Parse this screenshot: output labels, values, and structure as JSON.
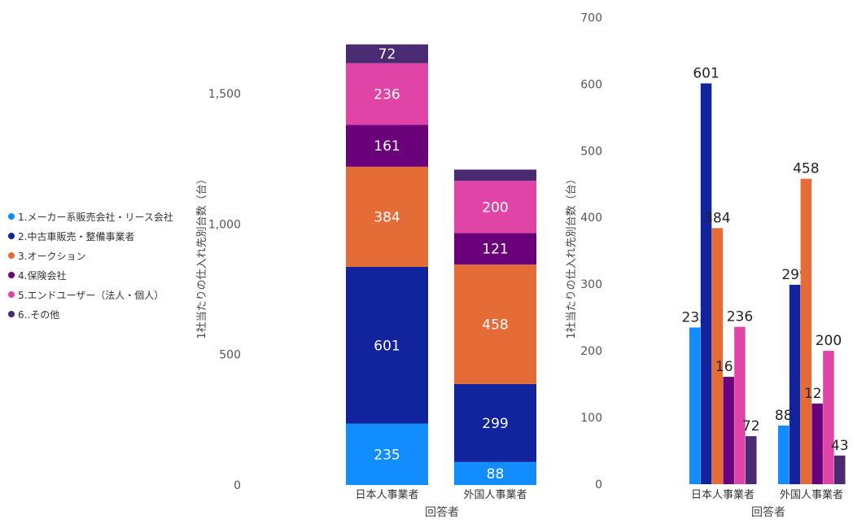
{
  "legend": {
    "items": [
      {
        "label": "1.メーカー系販売会社・リース会社",
        "color": "#118DFF"
      },
      {
        "label": "2.中古車販売・整備事業者",
        "color": "#12239E"
      },
      {
        "label": "3.オークション",
        "color": "#E66C37"
      },
      {
        "label": "4.保険会社",
        "color": "#6B007B"
      },
      {
        "label": "5.エンドユーザー（法人・個人）",
        "color": "#E044A7"
      },
      {
        "label": "6..その他",
        "color": "#4A2A73"
      }
    ]
  },
  "chart_data": [
    {
      "type": "bar",
      "stacked": true,
      "xlabel": "回答者",
      "ylabel": "1社当たりの仕入れ先別台数（台）",
      "ylim": [
        0,
        1700
      ],
      "ytick_labels": [
        "0",
        "500",
        "1,000",
        "1,500"
      ],
      "categories": [
        "日本人事業者",
        "外国人事業者"
      ],
      "series": [
        {
          "name": "1.メーカー系販売会社・リース会社",
          "values": [
            235,
            88
          ],
          "color": "#118DFF"
        },
        {
          "name": "2.中古車販売・整備事業者",
          "values": [
            601,
            299
          ],
          "color": "#12239E"
        },
        {
          "name": "3.オークション",
          "values": [
            384,
            458
          ],
          "color": "#E66C37"
        },
        {
          "name": "4.保険会社",
          "values": [
            161,
            121
          ],
          "color": "#6B007B"
        },
        {
          "name": "5.エンドユーザー（法人・個人）",
          "values": [
            236,
            200
          ],
          "color": "#E044A7"
        },
        {
          "name": "6..その他",
          "values": [
            72,
            43
          ],
          "color": "#4A2A73"
        }
      ],
      "data_labels": [
        [
          "235",
          "88"
        ],
        [
          "601",
          "299"
        ],
        [
          "384",
          "458"
        ],
        [
          "161",
          "121"
        ],
        [
          "236",
          "200"
        ],
        [
          "72",
          ""
        ]
      ]
    },
    {
      "type": "bar",
      "stacked": false,
      "xlabel": "回答者",
      "ylabel": "1社当たりの仕入れ先別台数（台）",
      "ylim": [
        0,
        700
      ],
      "ytick_labels": [
        "0",
        "100",
        "200",
        "300",
        "400",
        "500",
        "600",
        "700"
      ],
      "categories": [
        "日本人事業者",
        "外国人事業者"
      ],
      "series": [
        {
          "name": "1.メーカー系販売会社・リース会社",
          "values": [
            235,
            88
          ],
          "color": "#118DFF"
        },
        {
          "name": "2.中古車販売・整備事業者",
          "values": [
            601,
            299
          ],
          "color": "#12239E"
        },
        {
          "name": "3.オークション",
          "values": [
            384,
            458
          ],
          "color": "#E66C37"
        },
        {
          "name": "4.保険会社",
          "values": [
            161,
            121
          ],
          "color": "#6B007B"
        },
        {
          "name": "5.エンドユーザー（法人・個人）",
          "values": [
            236,
            200
          ],
          "color": "#E044A7"
        },
        {
          "name": "6..その他",
          "values": [
            72,
            43
          ],
          "color": "#4A2A73"
        }
      ],
      "data_labels": [
        [
          "235",
          "88"
        ],
        [
          "601",
          "299"
        ],
        [
          "384",
          "458"
        ],
        [
          "161",
          "121"
        ],
        [
          "236",
          "200"
        ],
        [
          "72",
          "43"
        ]
      ]
    }
  ]
}
